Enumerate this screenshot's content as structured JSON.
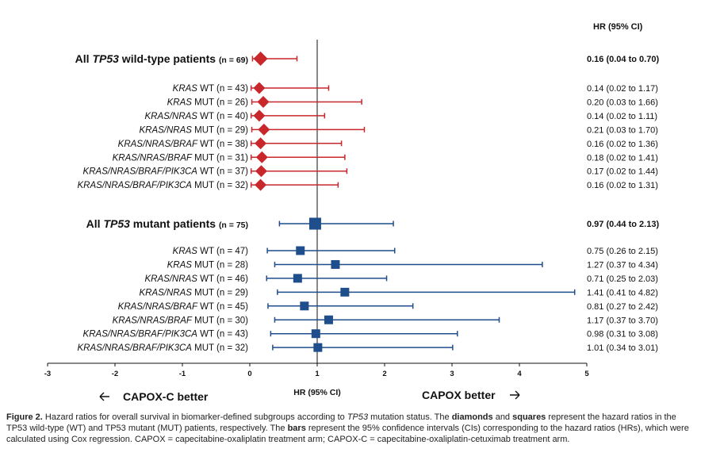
{
  "chart_data": {
    "type": "forest",
    "x_label": "HR (95% CI)",
    "xlim": [
      -3,
      5
    ],
    "x_ticks": [
      "-3",
      "-2",
      "-1",
      "0",
      "1",
      "2",
      "3",
      "4",
      "5"
    ],
    "reference_line": 1,
    "ci_column_header": "HR (95% CI)",
    "left_annotation": "CAPOX-C better",
    "right_annotation": "CAPOX better",
    "colors": {
      "wild_type": "#c8272c",
      "mutant": "#1f4e8c"
    },
    "groups": [
      {
        "marker": "diamond",
        "color": "#c8272c",
        "header": {
          "title_pre": "All ",
          "title_gene": "TP53",
          "title_post": " wild-type patients",
          "n_label": "(n = 69)",
          "hr": 0.16,
          "lo": 0.04,
          "hi": 0.7,
          "ci_text": "0.16 (0.04 to 0.70)"
        },
        "rows": [
          {
            "gene": "KRAS",
            "status": " WT (n = 43)",
            "hr": 0.14,
            "lo": 0.02,
            "hi": 1.17,
            "ci_text": "0.14 (0.02 to 1.17)"
          },
          {
            "gene": "KRAS",
            "status": " MUT (n = 26)",
            "hr": 0.2,
            "lo": 0.03,
            "hi": 1.66,
            "ci_text": "0.20 (0.03 to 1.66)"
          },
          {
            "gene": "KRAS/NRAS",
            "status": " WT (n = 40)",
            "hr": 0.14,
            "lo": 0.02,
            "hi": 1.11,
            "ci_text": "0.14 (0.02 to 1.11)"
          },
          {
            "gene": "KRAS/NRAS",
            "status": " MUT (n = 29)",
            "hr": 0.21,
            "lo": 0.03,
            "hi": 1.7,
            "ci_text": "0.21 (0.03 to 1.70)"
          },
          {
            "gene": "KRAS/NRAS/BRAF",
            "status": " WT (n = 38)",
            "hr": 0.16,
            "lo": 0.02,
            "hi": 1.36,
            "ci_text": "0.16 (0.02 to 1.36)"
          },
          {
            "gene": "KRAS/NRAS/BRAF",
            "status": " MUT (n = 31)",
            "hr": 0.18,
            "lo": 0.02,
            "hi": 1.41,
            "ci_text": "0.18 (0.02 to 1.41)"
          },
          {
            "gene": "KRAS/NRAS/BRAF/PIK3CA",
            "status": " WT (n = 37)",
            "hr": 0.17,
            "lo": 0.02,
            "hi": 1.44,
            "ci_text": "0.17 (0.02 to 1.44)"
          },
          {
            "gene": "KRAS/NRAS/BRAF/PIK3CA",
            "status": " MUT (n = 32)",
            "hr": 0.16,
            "lo": 0.02,
            "hi": 1.31,
            "ci_text": "0.16 (0.02 to 1.31)"
          }
        ]
      },
      {
        "marker": "square",
        "color": "#1f4e8c",
        "header": {
          "title_pre": "All ",
          "title_gene": "TP53",
          "title_post": " mutant patients",
          "n_label": "(n = 75)",
          "hr": 0.97,
          "lo": 0.44,
          "hi": 2.13,
          "ci_text": "0.97 (0.44 to 2.13)"
        },
        "rows": [
          {
            "gene": "KRAS",
            "status": " WT (n = 47)",
            "hr": 0.75,
            "lo": 0.26,
            "hi": 2.15,
            "ci_text": "0.75 (0.26 to 2.15)"
          },
          {
            "gene": "KRAS",
            "status": " MUT (n = 28)",
            "hr": 1.27,
            "lo": 0.37,
            "hi": 4.34,
            "ci_text": "1.27 (0.37 to 4.34)"
          },
          {
            "gene": "KRAS/NRAS",
            "status": " WT (n = 46)",
            "hr": 0.71,
            "lo": 0.25,
            "hi": 2.03,
            "ci_text": "0.71 (0.25 to 2.03)"
          },
          {
            "gene": "KRAS/NRAS",
            "status": " MUT (n = 29)",
            "hr": 1.41,
            "lo": 0.41,
            "hi": 4.82,
            "ci_text": "1.41 (0.41 to 4.82)"
          },
          {
            "gene": "KRAS/NRAS/BRAF",
            "status": " WT (n = 45)",
            "hr": 0.81,
            "lo": 0.27,
            "hi": 2.42,
            "ci_text": "0.81 (0.27 to 2.42)"
          },
          {
            "gene": "KRAS/NRAS/BRAF",
            "status": " MUT (n = 30)",
            "hr": 1.17,
            "lo": 0.37,
            "hi": 3.7,
            "ci_text": "1.17 (0.37 to 3.70)"
          },
          {
            "gene": "KRAS/NRAS/BRAF/PIK3CA",
            "status": " WT (n = 43)",
            "hr": 0.98,
            "lo": 0.31,
            "hi": 3.08,
            "ci_text": "0.98 (0.31 to 3.08)"
          },
          {
            "gene": "KRAS/NRAS/BRAF/PIK3CA",
            "status": " MUT (n = 32)",
            "hr": 1.01,
            "lo": 0.34,
            "hi": 3.01,
            "ci_text": "1.01 (0.34 to 3.01)"
          }
        ]
      }
    ]
  },
  "caption": {
    "label": "Figure 2.",
    "t1": " Hazard ratios for overall survival in biomarker-defined subgroups according to ",
    "t1_gene": "TP53",
    "t2": " mutation status. The ",
    "b_diamonds": "diamonds",
    "t3": " and ",
    "b_squares": "squares",
    "t4": " represent the hazard ratios in the TP53 wild-type (WT) and TP53 mutant (MUT) patients, respectively. The ",
    "b_bars": "bars",
    "t5": " represent the 95% confidence intervals (CIs) corresponding to the hazard ratios (HRs), which were calculated using Cox regression. CAPOX = capecitabine-oxaliplatin treatment arm; CAPOX-C = capecitabine-oxaliplatin-cetuximab treatment arm."
  }
}
